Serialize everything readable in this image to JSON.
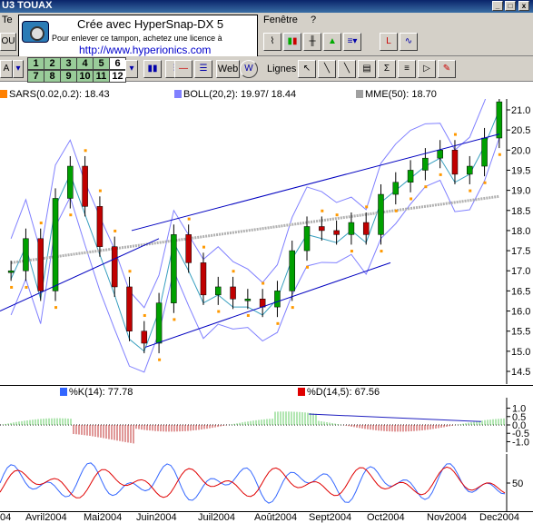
{
  "window": {
    "title": "U3 TOUAX"
  },
  "menu": {
    "left": "Te",
    "right": "Fenêtre",
    "right2": "?"
  },
  "stamp": {
    "line1": "Crée avec HyperSnap-DX 5",
    "line2": "Pour enlever ce tampon, achetez une licence à",
    "line3": "http://www.hyperionics.com"
  },
  "toolbar": {
    "row1_left": "OU",
    "row2_left": "A",
    "num_buttons": [
      "1",
      "2",
      "3",
      "4",
      "5",
      "6",
      "7",
      "8",
      "9",
      "10",
      "11",
      "12"
    ],
    "web_label": "Web",
    "lignes_label": "Lignes"
  },
  "main": {
    "legend": [
      {
        "label": "SARS(0.02,0.2): 18.43",
        "color": "#ff8000"
      },
      {
        "label": "BOLL(20,2): 19.97/ 18.44",
        "color": "#8080ff"
      },
      {
        "label": "MME(50): 18.70",
        "color": "#a0a0a0"
      }
    ],
    "price_ticks": [
      "21.0",
      "20.5",
      "20.0",
      "19.5",
      "19.0",
      "18.5",
      "18.0",
      "17.5",
      "17.0",
      "16.5",
      "16.0",
      "15.5",
      "15.0",
      "14.5"
    ]
  },
  "stoch": {
    "legend": [
      {
        "label": "%K(14): 77.78",
        "color": "#3366ff"
      },
      {
        "label": "%D(14,5): 67.56",
        "color": "#e00000"
      }
    ]
  },
  "osc": {
    "ticks": [
      "1.0",
      "0.5",
      "0.0",
      "-0.5",
      "-1.0"
    ]
  },
  "stochastic_panel": {
    "ticks": [
      "50"
    ]
  },
  "dates": [
    "04",
    "Avril2004",
    "Mai2004",
    "Juin2004",
    "Juil2004",
    "Août2004",
    "Sept2004",
    "Oct2004",
    "Nov2004",
    "Dec2004"
  ],
  "chart_data": {
    "type": "line",
    "price_range": [
      14.5,
      21.0
    ],
    "close_approx": [
      17.0,
      17.8,
      16.5,
      18.8,
      19.6,
      18.6,
      17.6,
      16.6,
      15.5,
      15.2,
      16.2,
      17.9,
      17.2,
      16.4,
      16.6,
      16.3,
      16.3,
      16.1,
      16.5,
      17.5,
      18.1,
      18.0,
      17.9,
      18.2,
      17.9,
      18.9,
      19.2,
      19.5,
      19.8,
      20.0,
      19.4,
      19.6,
      20.3,
      21.2
    ],
    "series": [
      {
        "name": "SARS(0.02,0.2)",
        "last": 18.43
      },
      {
        "name": "BOLL(20,2)",
        "last": [
          19.97,
          18.44
        ]
      },
      {
        "name": "MME(50)",
        "last": 18.7
      },
      {
        "name": "%K(14)",
        "last": 77.78
      },
      {
        "name": "%D(14,5)",
        "last": 67.56
      }
    ],
    "ylim": [
      14.5,
      21.0
    ]
  }
}
